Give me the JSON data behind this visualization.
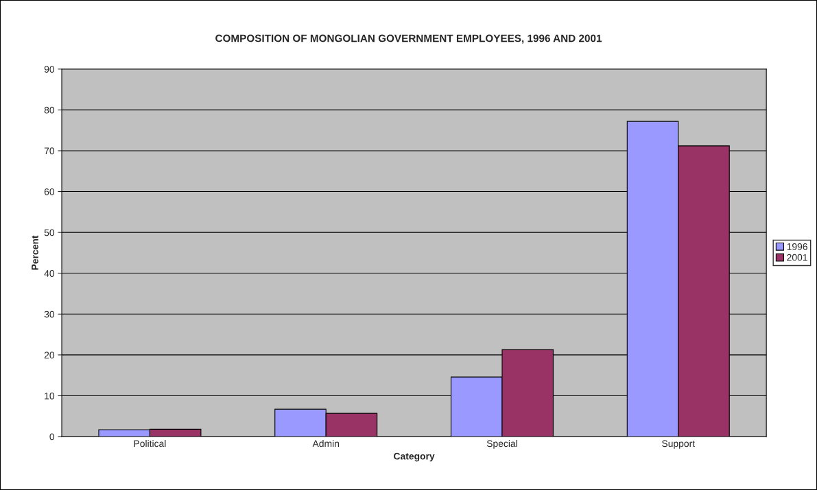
{
  "chart_data": {
    "type": "bar",
    "title": "COMPOSITION OF MONGOLIAN GOVERNMENT EMPLOYEES, 1996 AND 2001",
    "xlabel": "Category",
    "ylabel": "Percent",
    "categories": [
      "Political",
      "Admin",
      "Special",
      "Support"
    ],
    "series": [
      {
        "name": "1996",
        "color": "#9999ff",
        "values": [
          1.7,
          6.7,
          14.6,
          77.2
        ]
      },
      {
        "name": "2001",
        "color": "#993366",
        "values": [
          1.8,
          5.7,
          21.3,
          71.2
        ]
      }
    ],
    "ylim": [
      0,
      90
    ],
    "yticks": [
      0,
      10,
      20,
      30,
      40,
      50,
      60,
      70,
      80,
      90
    ],
    "grid": "y",
    "legend": "right"
  }
}
